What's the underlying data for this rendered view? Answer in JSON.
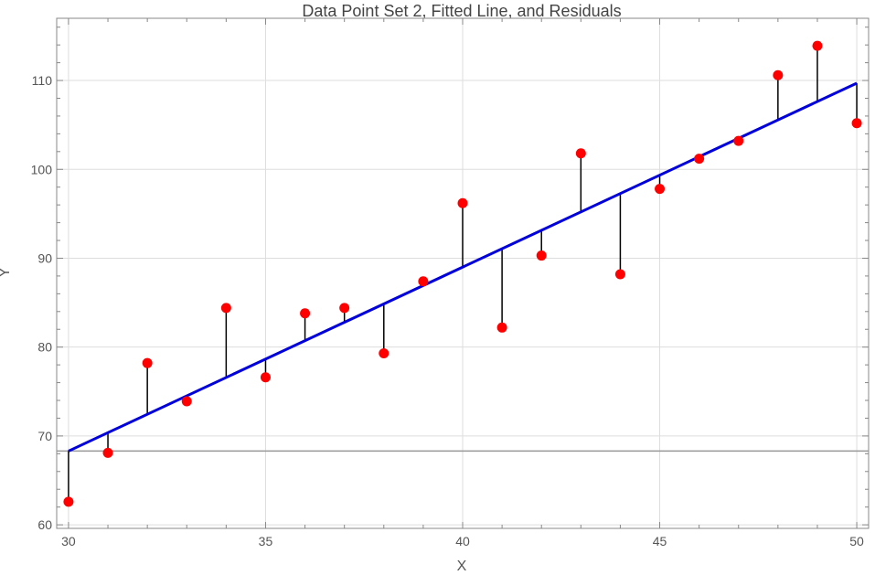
{
  "chart_data": {
    "type": "scatter",
    "title": "Data Point Set 2, Fitted Line, and Residuals",
    "xlabel": "X",
    "ylabel": "Y",
    "xlim": [
      29.7,
      50.3
    ],
    "ylim": [
      59.6,
      117.0
    ],
    "x_ticks": [
      30,
      35,
      40,
      45,
      50
    ],
    "y_ticks": [
      60,
      70,
      80,
      90,
      100,
      110
    ],
    "baseline_y": 68.3,
    "fitted_line": {
      "x": [
        30,
        50
      ],
      "y": [
        68.3,
        109.7
      ]
    },
    "points": {
      "x": [
        30,
        31,
        32,
        33,
        34,
        35,
        36,
        37,
        38,
        39,
        40,
        41,
        42,
        43,
        44,
        45,
        46,
        47,
        48,
        49,
        50
      ],
      "y": [
        62.6,
        68.1,
        78.2,
        73.9,
        84.4,
        76.6,
        83.8,
        84.4,
        79.3,
        87.4,
        96.2,
        82.2,
        90.3,
        101.8,
        88.2,
        97.8,
        101.2,
        103.2,
        110.6,
        113.9,
        105.2
      ]
    },
    "colors": {
      "points": "#ff0000",
      "fitted_line": "#0000dd",
      "residuals": "#000000",
      "baseline": "#999999",
      "frame": "#888888",
      "grid": "#dddddd"
    }
  }
}
